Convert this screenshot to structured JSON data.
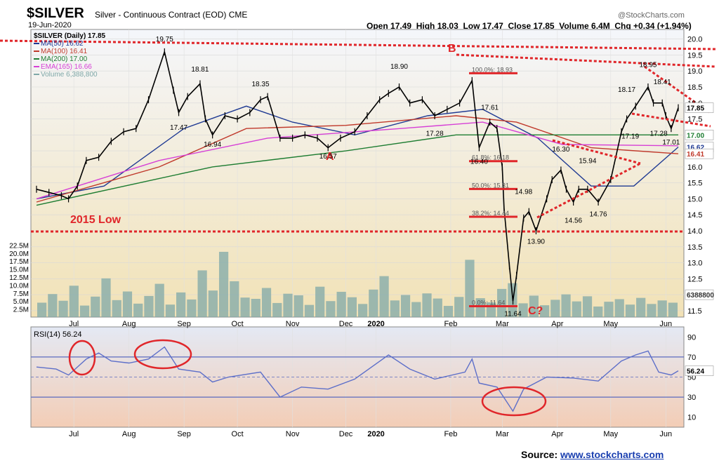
{
  "header": {
    "symbol": "$SILVER",
    "name": "Silver - Continuous Contract (EOD)",
    "exchange": "CME",
    "date": "19-Jun-2020",
    "brand": "@StockCharts.com",
    "open_label": "Open",
    "open": "17.49",
    "high_label": "High",
    "high": "18.03",
    "low_label": "Low",
    "low": "17.47",
    "close_label": "Close",
    "close": "17.85",
    "volume_label": "Volume",
    "volume": "6.4M",
    "chg_label": "Chg",
    "chg": "+0.34 (+1.94%)"
  },
  "legend": [
    {
      "text": "$SILVER (Daily) 17.85",
      "color": "#000000"
    },
    {
      "text": "MA(50) 16.62",
      "color": "#1f3a93"
    },
    {
      "text": "MA(100) 16.41",
      "color": "#c0392b"
    },
    {
      "text": "MA(200) 17.00",
      "color": "#1e7d32"
    },
    {
      "text": "EMA(165) 16.66",
      "color": "#d63fd6"
    },
    {
      "text": "Volume 6,388,800",
      "color": "#7fa8a8"
    }
  ],
  "colors": {
    "price_bg_top": "#f4f6fb",
    "price_bg_bottom": "#f2e2b6",
    "rsi_bg_top": "#e4e9f4",
    "rsi_bg_bottom": "#f3cdb6",
    "annotation": "#e0262a",
    "rsi_line": "#5d6fc9",
    "volume": "#7fa8a8",
    "source_link": "#1a3fb0"
  },
  "annotations": {
    "low_2015": "2015 Low",
    "wave_a": "A",
    "wave_b": "B",
    "wave_c": "C?"
  },
  "fib_labels": {
    "f100": "100.0%: 18.93",
    "f618": "61.8%: 16.18",
    "f500": "50.0%: 15.31",
    "f382": "38.2%: 14.44",
    "f0": "0.0%: 11.64"
  },
  "price_callouts": [
    {
      "text": "19.75",
      "date": "2019-09-04",
      "price": 19.75,
      "pos": "above"
    },
    {
      "text": "18.81",
      "date": "2019-09-24",
      "price": 18.81,
      "pos": "above"
    },
    {
      "text": "17.47",
      "date": "2019-09-12",
      "price": 17.47,
      "pos": "below"
    },
    {
      "text": "16.94",
      "date": "2019-10-01",
      "price": 16.94,
      "pos": "below"
    },
    {
      "text": "18.35",
      "date": "2019-10-28",
      "price": 18.35,
      "pos": "above"
    },
    {
      "text": "16.57",
      "date": "2019-12-05",
      "price": 16.57,
      "pos": "below"
    },
    {
      "text": "18.90",
      "date": "2020-01-14",
      "price": 18.9,
      "pos": "above"
    },
    {
      "text": "17.28",
      "date": "2020-02-03",
      "price": 17.28,
      "pos": "below"
    },
    {
      "text": "17.61",
      "date": "2020-03-05",
      "price": 17.61,
      "pos": "above"
    },
    {
      "text": "16.40",
      "date": "2020-02-28",
      "price": 16.4,
      "pos": "below"
    },
    {
      "text": "11.64",
      "date": "2020-03-18",
      "price": 11.64,
      "pos": "below"
    },
    {
      "text": "14.98",
      "date": "2020-03-24",
      "price": 14.98,
      "pos": "above"
    },
    {
      "text": "13.90",
      "date": "2020-03-31",
      "price": 13.9,
      "pos": "below"
    },
    {
      "text": "16.30",
      "date": "2020-04-14",
      "price": 16.3,
      "pos": "above"
    },
    {
      "text": "14.56",
      "date": "2020-04-21",
      "price": 14.56,
      "pos": "below"
    },
    {
      "text": "15.94",
      "date": "2020-04-29",
      "price": 15.94,
      "pos": "above"
    },
    {
      "text": "14.76",
      "date": "2020-05-05",
      "price": 14.76,
      "pos": "below"
    },
    {
      "text": "18.17",
      "date": "2020-05-21",
      "price": 18.17,
      "pos": "above"
    },
    {
      "text": "17.19",
      "date": "2020-05-23",
      "price": 17.19,
      "pos": "below"
    },
    {
      "text": "18.95",
      "date": "2020-06-02",
      "price": 18.95,
      "pos": "above"
    },
    {
      "text": "18.41",
      "date": "2020-06-10",
      "price": 18.41,
      "pos": "above"
    },
    {
      "text": "17.28",
      "date": "2020-06-08",
      "price": 17.28,
      "pos": "below"
    },
    {
      "text": "17.01",
      "date": "2020-06-15",
      "price": 17.01,
      "pos": "below"
    }
  ],
  "right_badges": [
    {
      "text": "17.85",
      "price": 17.85,
      "bg": "#ffffff",
      "fg": "#000000"
    },
    {
      "text": "17.00",
      "price": 17.0,
      "bg": "#ffffff",
      "fg": "#1e7d32"
    },
    {
      "text": "16.62",
      "price": 16.62,
      "bg": "#ffffff",
      "fg": "#1f3a93"
    },
    {
      "text": "16.41",
      "price": 16.41,
      "bg": "#ffffff",
      "fg": "#c0392b"
    },
    {
      "text": "6388800",
      "price": 12.0,
      "bg": "#ffffff",
      "fg": "#333333"
    }
  ],
  "rsi": {
    "label": "RSI(14) 56.24",
    "badge": "56.24",
    "value": 56.24,
    "ticks": [
      "90",
      "70",
      "50",
      "30",
      "10"
    ]
  },
  "chart_data": [
    {
      "type": "candlestick",
      "title": "$SILVER Silver - Continuous Contract (EOD) CME",
      "x_start": "2019-06-24",
      "x_end": "2020-06-19",
      "ylim": [
        11.3,
        20.3
      ],
      "y_ticks": [
        "20.0",
        "19.5",
        "19.0",
        "18.5",
        "18.0",
        "17.5",
        "17.0",
        "16.5",
        "16.0",
        "15.5",
        "15.0",
        "14.5",
        "14.0",
        "13.5",
        "13.0",
        "12.5",
        "12.0",
        "11.5"
      ],
      "volume_ticks": [
        "22.5M",
        "20.0M",
        "17.5M",
        "15.0M",
        "12.5M",
        "10.0M",
        "7.5M",
        "5.0M",
        "2.5M"
      ],
      "volume_max_millions": 25,
      "x_tick_labels": [
        {
          "date": "2019-07-15",
          "label": "Jul",
          "bold": false
        },
        {
          "date": "2019-08-15",
          "label": "Aug",
          "bold": false
        },
        {
          "date": "2019-09-15",
          "label": "Sep",
          "bold": false
        },
        {
          "date": "2019-10-15",
          "label": "Oct",
          "bold": false
        },
        {
          "date": "2019-11-15",
          "label": "Nov",
          "bold": false
        },
        {
          "date": "2019-12-15",
          "label": "Dec",
          "bold": false
        },
        {
          "date": "2020-01-01",
          "label": "2020",
          "bold": true
        },
        {
          "date": "2020-02-12",
          "label": "Feb",
          "bold": false
        },
        {
          "date": "2020-03-12",
          "label": "Mar",
          "bold": false
        },
        {
          "date": "2020-04-12",
          "label": "Apr",
          "bold": false
        },
        {
          "date": "2020-05-12",
          "label": "May",
          "bold": false
        },
        {
          "date": "2020-06-12",
          "label": "Jun",
          "bold": false
        }
      ],
      "price_path": [
        [
          "2019-06-24",
          15.3
        ],
        [
          "2019-07-01",
          15.2
        ],
        [
          "2019-07-08",
          15.1
        ],
        [
          "2019-07-12",
          15.0
        ],
        [
          "2019-07-17",
          15.4
        ],
        [
          "2019-07-22",
          16.2
        ],
        [
          "2019-07-29",
          16.3
        ],
        [
          "2019-08-05",
          16.8
        ],
        [
          "2019-08-12",
          17.1
        ],
        [
          "2019-08-19",
          17.2
        ],
        [
          "2019-08-26",
          18.1
        ],
        [
          "2019-09-04",
          19.6
        ],
        [
          "2019-09-09",
          18.4
        ],
        [
          "2019-09-12",
          17.7
        ],
        [
          "2019-09-17",
          18.2
        ],
        [
          "2019-09-24",
          18.6
        ],
        [
          "2019-09-27",
          17.5
        ],
        [
          "2019-10-01",
          17.0
        ],
        [
          "2019-10-08",
          17.6
        ],
        [
          "2019-10-15",
          17.5
        ],
        [
          "2019-10-22",
          17.7
        ],
        [
          "2019-10-28",
          18.1
        ],
        [
          "2019-11-01",
          18.2
        ],
        [
          "2019-11-08",
          16.9
        ],
        [
          "2019-11-15",
          16.9
        ],
        [
          "2019-11-22",
          17.0
        ],
        [
          "2019-11-29",
          16.9
        ],
        [
          "2019-12-05",
          16.6
        ],
        [
          "2019-12-12",
          16.9
        ],
        [
          "2019-12-20",
          17.1
        ],
        [
          "2019-12-27",
          17.6
        ],
        [
          "2020-01-03",
          18.1
        ],
        [
          "2020-01-08",
          18.3
        ],
        [
          "2020-01-14",
          18.5
        ],
        [
          "2020-01-20",
          18.0
        ],
        [
          "2020-01-27",
          18.1
        ],
        [
          "2020-02-03",
          17.6
        ],
        [
          "2020-02-10",
          17.8
        ],
        [
          "2020-02-17",
          18.0
        ],
        [
          "2020-02-24",
          18.7
        ],
        [
          "2020-02-28",
          16.6
        ],
        [
          "2020-03-05",
          17.4
        ],
        [
          "2020-03-09",
          17.2
        ],
        [
          "2020-03-12",
          16.0
        ],
        [
          "2020-03-13",
          14.7
        ],
        [
          "2020-03-16",
          12.9
        ],
        [
          "2020-03-18",
          11.8
        ],
        [
          "2020-03-20",
          12.6
        ],
        [
          "2020-03-24",
          14.4
        ],
        [
          "2020-03-27",
          14.6
        ],
        [
          "2020-03-31",
          14.0
        ],
        [
          "2020-04-06",
          15.0
        ],
        [
          "2020-04-09",
          15.6
        ],
        [
          "2020-04-14",
          15.9
        ],
        [
          "2020-04-17",
          15.3
        ],
        [
          "2020-04-21",
          14.9
        ],
        [
          "2020-04-24",
          15.3
        ],
        [
          "2020-04-29",
          15.3
        ],
        [
          "2020-05-05",
          14.9
        ],
        [
          "2020-05-12",
          15.6
        ],
        [
          "2020-05-18",
          17.1
        ],
        [
          "2020-05-21",
          17.5
        ],
        [
          "2020-05-26",
          17.9
        ],
        [
          "2020-06-02",
          18.5
        ],
        [
          "2020-06-05",
          18.0
        ],
        [
          "2020-06-10",
          18.0
        ],
        [
          "2020-06-12",
          17.6
        ],
        [
          "2020-06-15",
          17.2
        ],
        [
          "2020-06-19",
          17.85
        ]
      ],
      "moving_averages": [
        {
          "name": "MA(50)",
          "color": "#1f3a93",
          "points": [
            [
              "2019-06-24",
              15.0
            ],
            [
              "2019-08-01",
              15.4
            ],
            [
              "2019-09-15",
              17.2
            ],
            [
              "2019-10-20",
              17.9
            ],
            [
              "2019-11-15",
              17.4
            ],
            [
              "2019-12-20",
              17.0
            ],
            [
              "2020-01-30",
              17.6
            ],
            [
              "2020-03-01",
              17.8
            ],
            [
              "2020-04-01",
              16.9
            ],
            [
              "2020-05-01",
              15.4
            ],
            [
              "2020-05-25",
              15.4
            ],
            [
              "2020-06-19",
              16.62
            ]
          ]
        },
        {
          "name": "MA(100)",
          "color": "#c0392b",
          "points": [
            [
              "2019-06-24",
              14.9
            ],
            [
              "2019-09-01",
              16.0
            ],
            [
              "2019-10-20",
              17.2
            ],
            [
              "2019-12-15",
              17.3
            ],
            [
              "2020-02-15",
              17.6
            ],
            [
              "2020-03-20",
              17.4
            ],
            [
              "2020-05-01",
              16.6
            ],
            [
              "2020-06-19",
              16.41
            ]
          ]
        },
        {
          "name": "MA(200)",
          "color": "#1e7d32",
          "points": [
            [
              "2019-06-24",
              14.8
            ],
            [
              "2019-10-01",
              16.0
            ],
            [
              "2019-12-15",
              16.5
            ],
            [
              "2020-02-15",
              17.0
            ],
            [
              "2020-04-01",
              17.0
            ],
            [
              "2020-06-19",
              17.0
            ]
          ]
        },
        {
          "name": "EMA(165)",
          "color": "#d63fd6",
          "points": [
            [
              "2019-06-24",
              15.0
            ],
            [
              "2019-09-01",
              16.2
            ],
            [
              "2019-11-01",
              16.9
            ],
            [
              "2020-01-15",
              17.2
            ],
            [
              "2020-03-01",
              17.4
            ],
            [
              "2020-04-15",
              16.7
            ],
            [
              "2020-06-19",
              16.66
            ]
          ]
        }
      ],
      "volume_millions": [
        4.5,
        7.2,
        5.1,
        9.8,
        3.6,
        6.4,
        12.1,
        5.3,
        8.0,
        4.2,
        6.6,
        10.4,
        3.9,
        7.7,
        5.5,
        14.6,
        8.3,
        20.4,
        11.2,
        6.1,
        5.7,
        9.1,
        4.4,
        7.3,
        6.8,
        3.8,
        9.5,
        5.0,
        7.9,
        6.2,
        4.1,
        8.6,
        12.8,
        5.2,
        6.9,
        4.7,
        7.4,
        5.8,
        3.5,
        6.3,
        17.9,
        5.9,
        4.6,
        8.8,
        10.6,
        4.3,
        6.7,
        3.7,
        5.4,
        7.1,
        4.9,
        6.5,
        3.3,
        4.8,
        5.6,
        3.9,
        6.0,
        4.1,
        5.2,
        4.5
      ]
    },
    {
      "type": "line",
      "title": "RSI(14) 56.24",
      "ylim": [
        0,
        100
      ],
      "y_ticks": [
        90,
        70,
        50,
        30,
        10
      ],
      "reference_lines": [
        70,
        50,
        30
      ],
      "points": [
        [
          "2019-06-24",
          60
        ],
        [
          "2019-07-05",
          58
        ],
        [
          "2019-07-12",
          52
        ],
        [
          "2019-07-22",
          68
        ],
        [
          "2019-07-29",
          74
        ],
        [
          "2019-08-05",
          66
        ],
        [
          "2019-08-15",
          64
        ],
        [
          "2019-08-26",
          68
        ],
        [
          "2019-09-04",
          80
        ],
        [
          "2019-09-12",
          58
        ],
        [
          "2019-09-24",
          55
        ],
        [
          "2019-10-01",
          45
        ],
        [
          "2019-10-10",
          50
        ],
        [
          "2019-10-28",
          55
        ],
        [
          "2019-11-08",
          30
        ],
        [
          "2019-11-20",
          40
        ],
        [
          "2019-12-05",
          38
        ],
        [
          "2019-12-20",
          48
        ],
        [
          "2020-01-08",
          72
        ],
        [
          "2020-01-20",
          58
        ],
        [
          "2020-02-03",
          48
        ],
        [
          "2020-02-20",
          55
        ],
        [
          "2020-02-24",
          68
        ],
        [
          "2020-02-28",
          44
        ],
        [
          "2020-03-09",
          40
        ],
        [
          "2020-03-18",
          16
        ],
        [
          "2020-03-24",
          38
        ],
        [
          "2020-04-06",
          50
        ],
        [
          "2020-04-21",
          49
        ],
        [
          "2020-05-05",
          46
        ],
        [
          "2020-05-18",
          66
        ],
        [
          "2020-05-26",
          72
        ],
        [
          "2020-06-02",
          76
        ],
        [
          "2020-06-08",
          55
        ],
        [
          "2020-06-15",
          52
        ],
        [
          "2020-06-19",
          56.24
        ]
      ]
    }
  ],
  "source": {
    "label": "Source:",
    "link": "www.stockcharts.com"
  }
}
